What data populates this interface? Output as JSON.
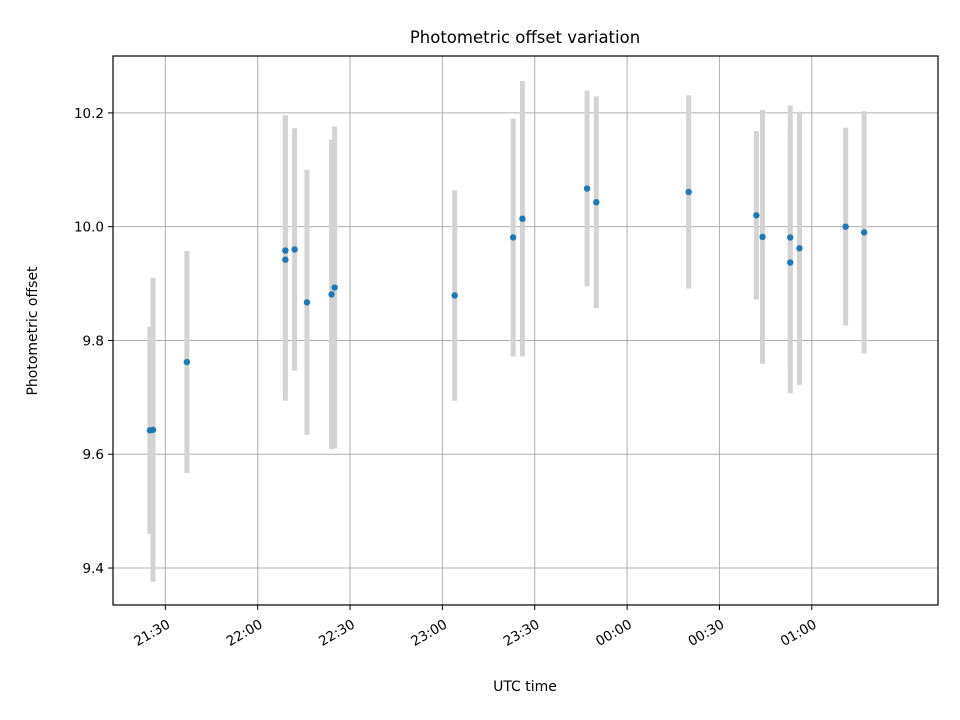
{
  "chart_data": {
    "type": "scatter",
    "title": "Photometric offset variation",
    "xlabel": "UTC time",
    "ylabel": "Photometric offset",
    "xlim": [
      "21:13",
      "01:41"
    ],
    "ylim": [
      9.335,
      10.3
    ],
    "x_ticks": [
      "21:30",
      "22:00",
      "22:30",
      "23:00",
      "23:30",
      "00:00",
      "00:30",
      "01:00"
    ],
    "y_ticks": [
      9.4,
      9.6,
      9.8,
      10.0,
      10.2
    ],
    "grid": true,
    "point_color": "#1f77b4",
    "errorbar_color": "#d3d3d3",
    "points": [
      {
        "time": "21:25",
        "y": 9.642,
        "yerr": 0.182
      },
      {
        "time": "21:26",
        "y": 9.643,
        "yerr": 0.267
      },
      {
        "time": "21:37",
        "y": 9.762,
        "yerr": 0.195
      },
      {
        "time": "22:09",
        "y": 9.958,
        "yerr": 0.238
      },
      {
        "time": "22:09",
        "y": 9.942,
        "yerr": 0.248
      },
      {
        "time": "22:12",
        "y": 9.96,
        "yerr": 0.213
      },
      {
        "time": "22:16",
        "y": 9.867,
        "yerr": 0.233
      },
      {
        "time": "22:24",
        "y": 9.881,
        "yerr": 0.272
      },
      {
        "time": "22:25",
        "y": 9.893,
        "yerr": 0.283
      },
      {
        "time": "23:04",
        "y": 9.879,
        "yerr": 0.185
      },
      {
        "time": "23:23",
        "y": 9.981,
        "yerr": 0.209
      },
      {
        "time": "23:26",
        "y": 10.014,
        "yerr": 0.242
      },
      {
        "time": "23:47",
        "y": 10.067,
        "yerr": 0.172
      },
      {
        "time": "23:50",
        "y": 10.043,
        "yerr": 0.186
      },
      {
        "time": "00:20",
        "y": 10.061,
        "yerr": 0.17
      },
      {
        "time": "00:42",
        "y": 10.02,
        "yerr": 0.148
      },
      {
        "time": "00:44",
        "y": 9.982,
        "yerr": 0.223
      },
      {
        "time": "00:53",
        "y": 9.981,
        "yerr": 0.232
      },
      {
        "time": "00:53",
        "y": 9.937,
        "yerr": 0.23
      },
      {
        "time": "00:56",
        "y": 9.962,
        "yerr": 0.24
      },
      {
        "time": "01:11",
        "y": 10.0,
        "yerr": 0.174
      },
      {
        "time": "01:17",
        "y": 9.99,
        "yerr": 0.213
      }
    ]
  }
}
